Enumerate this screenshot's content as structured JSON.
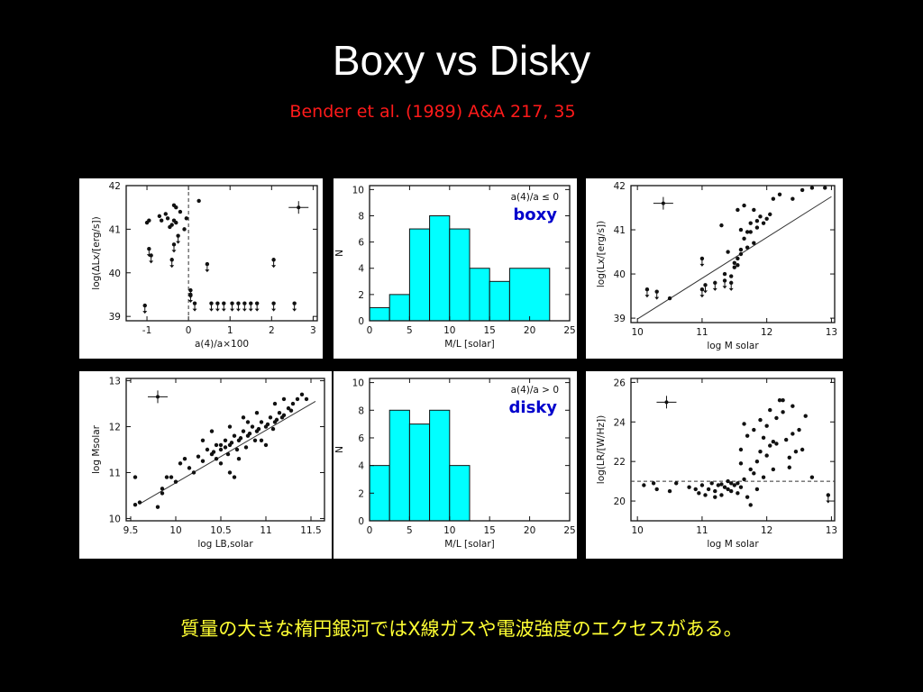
{
  "slide": {
    "title": "Boxy vs Disky",
    "citation": "Bender et al. (1989) A&A 217, 35",
    "caption": "質量の大きな楕円銀河ではX線ガスや電波強度のエクセスがある。"
  },
  "colors": {
    "background": "#000000",
    "plot_bg": "#ffffff",
    "histogram_fill": "#00ffff",
    "citation": "#ff1a1a",
    "caption": "#ffff33"
  },
  "chart_data": [
    {
      "id": "p1",
      "type": "scatter",
      "xlabel": "a(4)/a×100",
      "ylabel": "log(ΔLx/[erg/s])",
      "xlim": [
        -1.5,
        3.1
      ],
      "ylim": [
        38.9,
        42
      ],
      "xticks": [
        -1,
        0,
        1,
        2,
        3
      ],
      "xticklabels": [
        "-1",
        "0",
        "1",
        "2",
        "3"
      ],
      "yticks": [
        39,
        40,
        41,
        42
      ],
      "yticklabels": [
        "39",
        "40",
        "41",
        "42"
      ],
      "vline": 0,
      "points": [
        [
          -1.0,
          41.15
        ],
        [
          -0.95,
          41.2
        ],
        [
          -0.7,
          41.3
        ],
        [
          -0.65,
          41.2
        ],
        [
          -0.4,
          41.1
        ],
        [
          -0.35,
          41.2
        ],
        [
          -0.3,
          41.15
        ],
        [
          -0.35,
          41.55
        ],
        [
          -0.3,
          41.5
        ],
        [
          -0.45,
          41.05
        ],
        [
          -0.5,
          41.25
        ],
        [
          -0.55,
          41.35
        ],
        [
          -0.05,
          41.25
        ],
        [
          0.25,
          41.65
        ],
        [
          -0.1,
          41.0
        ],
        [
          -0.2,
          41.4
        ]
      ],
      "upper_limits": [
        [
          -1.05,
          39.25
        ],
        [
          -0.95,
          40.55
        ],
        [
          -0.9,
          40.4
        ],
        [
          -0.4,
          40.3
        ],
        [
          -0.35,
          40.65
        ],
        [
          -0.25,
          40.85
        ],
        [
          0.05,
          39.6
        ],
        [
          0.05,
          39.5
        ],
        [
          0.15,
          39.3
        ],
        [
          0.45,
          40.2
        ],
        [
          0.55,
          39.3
        ],
        [
          0.7,
          39.3
        ],
        [
          0.85,
          39.3
        ],
        [
          1.05,
          39.3
        ],
        [
          1.2,
          39.3
        ],
        [
          1.35,
          39.3
        ],
        [
          1.5,
          39.3
        ],
        [
          1.65,
          39.3
        ],
        [
          2.05,
          39.3
        ],
        [
          2.05,
          40.3
        ],
        [
          2.55,
          39.3
        ]
      ],
      "errorbar": [
        2.65,
        41.5
      ]
    },
    {
      "id": "p2",
      "type": "bar",
      "xlabel": "M/L [solar]",
      "ylabel": "N",
      "annotation": "a(4)/a ≤ 0",
      "label": "boxy",
      "xlim": [
        0,
        25
      ],
      "ylim": [
        0,
        10.3
      ],
      "xticks": [
        0,
        5,
        10,
        15,
        20,
        25
      ],
      "xticklabels": [
        "0",
        "5",
        "10",
        "15",
        "20",
        "25"
      ],
      "yticks": [
        0,
        2,
        4,
        6,
        8,
        10
      ],
      "yticklabels": [
        "0",
        "2",
        "4",
        "6",
        "8",
        "10"
      ],
      "bins": [
        [
          0,
          2.5,
          1
        ],
        [
          2.5,
          5,
          2
        ],
        [
          5,
          7.5,
          7
        ],
        [
          7.5,
          10,
          8
        ],
        [
          10,
          12.5,
          7
        ],
        [
          12.5,
          15,
          4
        ],
        [
          15,
          17.5,
          3
        ],
        [
          17.5,
          22.5,
          4
        ]
      ]
    },
    {
      "id": "p3",
      "type": "scatter",
      "xlabel": "log M solar",
      "ylabel": "log(Lx/[erg/s])",
      "xlim": [
        9.9,
        13.05
      ],
      "ylim": [
        38.9,
        42
      ],
      "xticks": [
        10,
        11,
        12,
        13
      ],
      "xticklabels": [
        "10",
        "11",
        "12",
        "13"
      ],
      "yticks": [
        39,
        40,
        41,
        42
      ],
      "yticklabels": [
        "39",
        "40",
        "41",
        "42"
      ],
      "fit": [
        [
          10.0,
          38.98
        ],
        [
          13.0,
          41.75
        ]
      ],
      "points": [
        [
          10.5,
          39.45
        ],
        [
          11.4,
          40.5
        ],
        [
          11.5,
          40.25
        ],
        [
          11.55,
          40.35
        ],
        [
          11.6,
          40.55
        ],
        [
          11.65,
          40.8
        ],
        [
          11.7,
          40.95
        ],
        [
          11.75,
          41.15
        ],
        [
          11.6,
          41.0
        ],
        [
          11.7,
          40.6
        ],
        [
          11.8,
          40.7
        ],
        [
          11.85,
          41.05
        ],
        [
          11.9,
          41.3
        ],
        [
          11.95,
          41.15
        ],
        [
          12.0,
          41.25
        ],
        [
          12.05,
          41.35
        ],
        [
          11.55,
          41.45
        ],
        [
          11.65,
          41.55
        ],
        [
          11.8,
          41.45
        ],
        [
          12.1,
          41.7
        ],
        [
          12.2,
          41.8
        ],
        [
          12.4,
          41.7
        ],
        [
          12.55,
          41.9
        ],
        [
          12.7,
          41.95
        ],
        [
          12.9,
          41.95
        ],
        [
          11.5,
          40.15
        ],
        [
          11.35,
          40.0
        ],
        [
          11.45,
          39.95
        ],
        [
          11.75,
          40.95
        ],
        [
          11.6,
          40.45
        ],
        [
          11.55,
          40.2
        ],
        [
          11.85,
          41.2
        ],
        [
          11.3,
          41.1
        ]
      ],
      "upper_limits": [
        [
          10.15,
          39.65
        ],
        [
          10.3,
          39.6
        ],
        [
          11.0,
          40.35
        ],
        [
          11.0,
          39.65
        ],
        [
          11.05,
          39.75
        ],
        [
          11.2,
          39.8
        ],
        [
          11.35,
          39.85
        ],
        [
          11.45,
          39.8
        ]
      ],
      "errorbar": [
        10.4,
        41.6
      ]
    },
    {
      "id": "p4",
      "type": "scatter",
      "xlabel": "log LB,solar",
      "ylabel": "log Msolar",
      "xlim": [
        9.45,
        11.65
      ],
      "ylim": [
        9.95,
        13.05
      ],
      "xticks": [
        9.5,
        10,
        10.5,
        11,
        11.5
      ],
      "xticklabels": [
        "9.5",
        "10",
        "10.5",
        "11",
        "11.5"
      ],
      "yticks": [
        10,
        11,
        12,
        13
      ],
      "yticklabels": [
        "10",
        "11",
        "12",
        "13"
      ],
      "fit": [
        [
          9.6,
          10.32
        ],
        [
          11.55,
          12.55
        ]
      ],
      "points": [
        [
          9.55,
          10.3
        ],
        [
          9.6,
          10.35
        ],
        [
          9.55,
          10.9
        ],
        [
          9.8,
          10.25
        ],
        [
          9.85,
          10.55
        ],
        [
          9.85,
          10.65
        ],
        [
          9.9,
          10.9
        ],
        [
          9.95,
          10.9
        ],
        [
          10.0,
          10.8
        ],
        [
          10.05,
          11.2
        ],
        [
          10.1,
          11.3
        ],
        [
          10.15,
          11.1
        ],
        [
          10.2,
          11.0
        ],
        [
          10.25,
          11.35
        ],
        [
          10.3,
          11.25
        ],
        [
          10.35,
          11.5
        ],
        [
          10.4,
          11.4
        ],
        [
          10.45,
          11.6
        ],
        [
          10.5,
          11.5
        ],
        [
          10.5,
          11.2
        ],
        [
          10.55,
          11.7
        ],
        [
          10.6,
          11.6
        ],
        [
          10.65,
          11.8
        ],
        [
          10.7,
          11.7
        ],
        [
          10.75,
          11.9
        ],
        [
          10.8,
          11.8
        ],
        [
          10.85,
          12.0
        ],
        [
          10.9,
          11.9
        ],
        [
          10.95,
          12.1
        ],
        [
          11.0,
          12.0
        ],
        [
          11.05,
          12.2
        ],
        [
          11.1,
          12.1
        ],
        [
          11.15,
          12.3
        ],
        [
          11.2,
          12.25
        ],
        [
          11.25,
          12.4
        ],
        [
          11.3,
          12.5
        ],
        [
          11.35,
          12.6
        ],
        [
          11.4,
          12.7
        ],
        [
          10.6,
          11.0
        ],
        [
          10.7,
          11.3
        ],
        [
          10.8,
          12.1
        ],
        [
          10.9,
          12.3
        ],
        [
          11.0,
          11.6
        ],
        [
          11.1,
          12.5
        ],
        [
          10.4,
          11.9
        ],
        [
          10.3,
          11.7
        ],
        [
          10.6,
          12.0
        ],
        [
          10.75,
          12.2
        ],
        [
          10.95,
          11.7
        ],
        [
          11.2,
          12.6
        ],
        [
          10.65,
          10.9
        ],
        [
          10.5,
          11.6
        ],
        [
          10.55,
          11.55
        ],
        [
          10.62,
          11.65
        ],
        [
          10.68,
          11.5
        ],
        [
          10.72,
          11.75
        ],
        [
          10.78,
          11.55
        ],
        [
          10.82,
          11.85
        ],
        [
          10.88,
          11.7
        ],
        [
          10.92,
          11.95
        ],
        [
          11.02,
          12.05
        ],
        [
          11.08,
          11.95
        ],
        [
          11.12,
          12.15
        ],
        [
          11.18,
          12.2
        ],
        [
          11.28,
          12.35
        ],
        [
          11.45,
          12.6
        ],
        [
          10.45,
          11.3
        ],
        [
          10.58,
          11.4
        ],
        [
          10.42,
          11.45
        ]
      ],
      "errorbar": [
        9.8,
        12.65
      ]
    },
    {
      "id": "p5",
      "type": "bar",
      "xlabel": "M/L [solar]",
      "ylabel": "N",
      "annotation": "a(4)/a > 0",
      "label": "disky",
      "xlim": [
        0,
        25
      ],
      "ylim": [
        0,
        10.3
      ],
      "xticks": [
        0,
        5,
        10,
        15,
        20,
        25
      ],
      "xticklabels": [
        "0",
        "5",
        "10",
        "15",
        "20",
        "25"
      ],
      "yticks": [
        0,
        2,
        4,
        6,
        8,
        10
      ],
      "yticklabels": [
        "0",
        "2",
        "4",
        "6",
        "8",
        "10"
      ],
      "bins": [
        [
          0,
          2.5,
          4
        ],
        [
          2.5,
          5,
          8
        ],
        [
          5,
          7.5,
          7
        ],
        [
          7.5,
          10,
          8
        ],
        [
          10,
          12.5,
          4
        ]
      ]
    },
    {
      "id": "p6",
      "type": "scatter",
      "xlabel": "log M solar",
      "ylabel": "log(LR/[W/Hz])",
      "xlim": [
        9.9,
        13.05
      ],
      "ylim": [
        19.0,
        26.2
      ],
      "xticks": [
        10,
        11,
        12,
        13
      ],
      "xticklabels": [
        "10",
        "11",
        "12",
        "13"
      ],
      "yticks": [
        20,
        22,
        24,
        26
      ],
      "yticklabels": [
        "20",
        "22",
        "24",
        "26"
      ],
      "hline": 21,
      "points": [
        [
          10.1,
          20.8
        ],
        [
          10.25,
          20.9
        ],
        [
          10.3,
          20.6
        ],
        [
          10.5,
          20.5
        ],
        [
          10.6,
          20.9
        ],
        [
          10.8,
          20.7
        ],
        [
          10.95,
          20.4
        ],
        [
          11.0,
          20.8
        ],
        [
          11.05,
          20.3
        ],
        [
          11.1,
          20.6
        ],
        [
          11.15,
          20.9
        ],
        [
          11.2,
          20.5
        ],
        [
          11.25,
          20.8
        ],
        [
          11.3,
          20.3
        ],
        [
          11.35,
          20.7
        ],
        [
          11.4,
          21.0
        ],
        [
          11.45,
          20.5
        ],
        [
          11.5,
          20.8
        ],
        [
          11.55,
          20.4
        ],
        [
          11.6,
          20.7
        ],
        [
          11.65,
          21.1
        ],
        [
          11.7,
          20.2
        ],
        [
          11.75,
          19.8
        ],
        [
          11.8,
          21.4
        ],
        [
          11.85,
          22.0
        ],
        [
          11.9,
          22.5
        ],
        [
          11.95,
          23.2
        ],
        [
          12.0,
          23.8
        ],
        [
          12.05,
          22.8
        ],
        [
          12.1,
          21.6
        ],
        [
          12.15,
          24.2
        ],
        [
          12.2,
          25.1
        ],
        [
          12.25,
          24.5
        ],
        [
          12.3,
          23.1
        ],
        [
          12.35,
          22.2
        ],
        [
          12.4,
          24.8
        ],
        [
          12.45,
          22.5
        ],
        [
          12.5,
          23.6
        ],
        [
          12.6,
          24.3
        ],
        [
          12.7,
          21.2
        ],
        [
          11.6,
          22.6
        ],
        [
          11.7,
          23.3
        ],
        [
          11.8,
          23.6
        ],
        [
          11.9,
          24.1
        ],
        [
          12.0,
          22.3
        ],
        [
          11.75,
          21.6
        ],
        [
          11.85,
          20.6
        ],
        [
          12.05,
          24.6
        ],
        [
          12.1,
          23.0
        ],
        [
          12.25,
          25.1
        ],
        [
          11.65,
          23.9
        ],
        [
          12.4,
          23.4
        ],
        [
          12.55,
          22.6
        ],
        [
          11.55,
          20.9
        ],
        [
          11.6,
          21.9
        ],
        [
          11.95,
          21.2
        ],
        [
          12.35,
          21.7
        ],
        [
          12.15,
          22.9
        ],
        [
          11.45,
          20.9
        ],
        [
          10.9,
          20.6
        ],
        [
          11.2,
          20.2
        ],
        [
          11.3,
          20.85
        ],
        [
          11.4,
          20.6
        ]
      ],
      "upper_limits": [
        [
          12.95,
          20.3
        ]
      ],
      "errorbar": [
        10.45,
        25.0
      ]
    }
  ]
}
